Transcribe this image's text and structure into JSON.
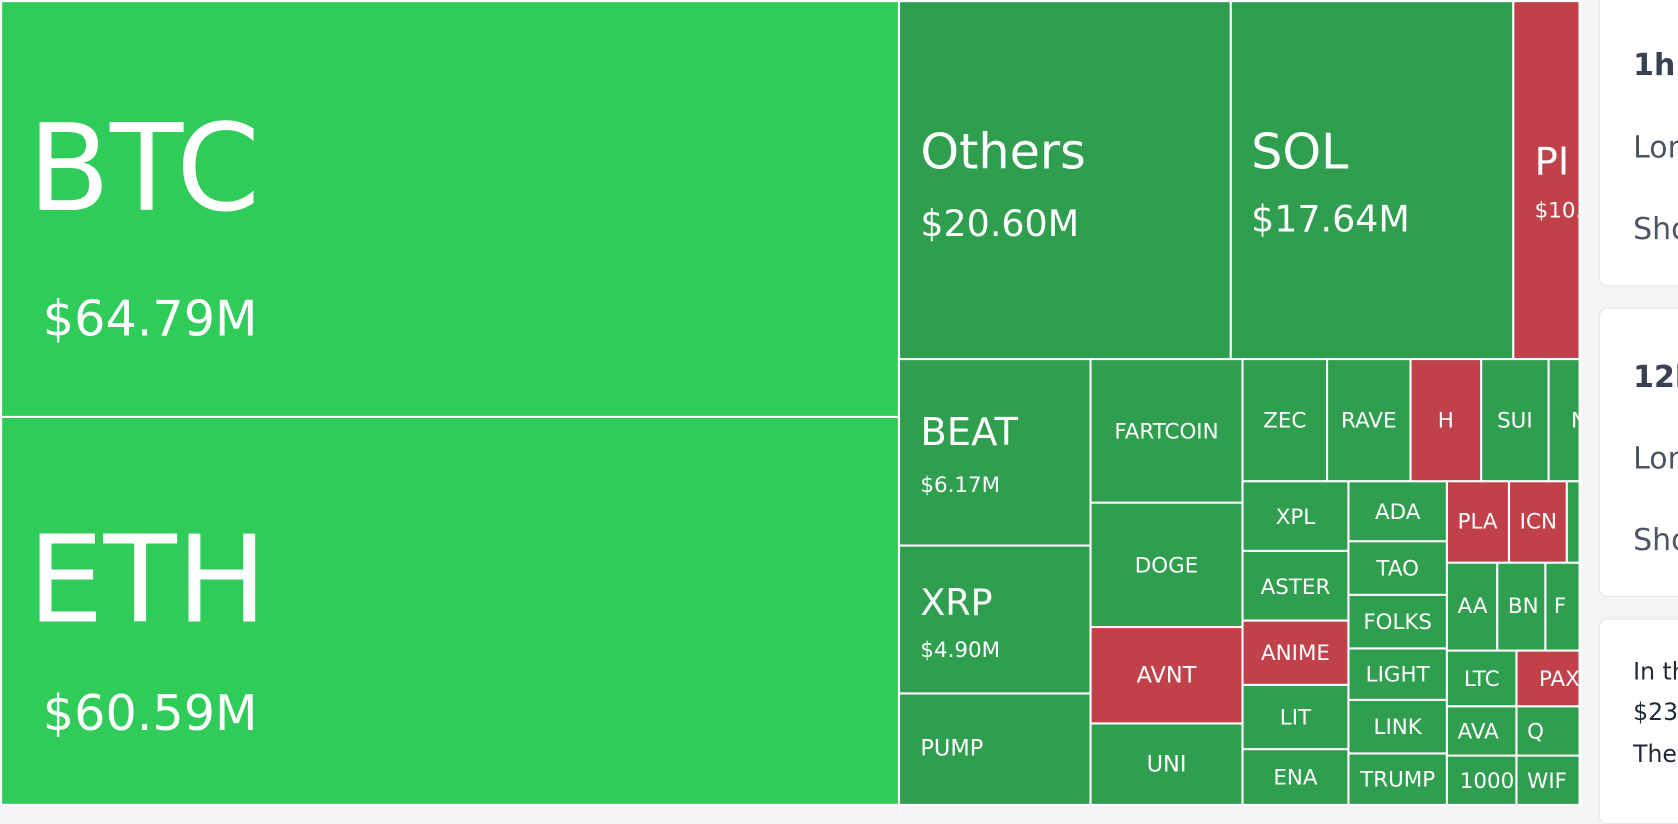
{
  "treemap": {
    "tiles": [
      {
        "label": "BTC",
        "value": "$64.79M"
      },
      {
        "label": "ETH",
        "value": "$60.59M"
      },
      {
        "label": "Others",
        "value": "$20.60M"
      },
      {
        "label": "SOL",
        "value": "$17.64M"
      },
      {
        "label": "PI",
        "value": "$10."
      },
      {
        "label": "BEAT",
        "value": "$6.17M"
      },
      {
        "label": "XRP",
        "value": "$4.90M"
      },
      {
        "label": "PUMP"
      },
      {
        "label": "FARTCOIN"
      },
      {
        "label": "DOGE"
      },
      {
        "label": "AVNT"
      },
      {
        "label": "UNI"
      },
      {
        "label": "ZEC"
      },
      {
        "label": "RAVE"
      },
      {
        "label": "H"
      },
      {
        "label": "SUI"
      },
      {
        "label": "N"
      },
      {
        "label": "XPL"
      },
      {
        "label": "ASTER"
      },
      {
        "label": "ANIME"
      },
      {
        "label": "LIT"
      },
      {
        "label": "ENA"
      },
      {
        "label": "ADA"
      },
      {
        "label": "TAO"
      },
      {
        "label": "FOLKS"
      },
      {
        "label": "LIGHT"
      },
      {
        "label": "LINK"
      },
      {
        "label": "TRUMP"
      },
      {
        "label": "PLA"
      },
      {
        "label": "ICN"
      },
      {
        "label": "AA"
      },
      {
        "label": "BN"
      },
      {
        "label": "F"
      },
      {
        "label": "LTC"
      },
      {
        "label": "PAX"
      },
      {
        "label": "AVA"
      },
      {
        "label": "Q"
      },
      {
        "label": "1000"
      },
      {
        "label": "WIF"
      }
    ]
  },
  "panel": {
    "card1": {
      "title": "1h",
      "long": "Lon",
      "short": "Sho"
    },
    "card2": {
      "title": "12h",
      "long": "Lon",
      "short": "Sho"
    },
    "card3": {
      "lines": [
        "In th",
        "$23",
        "The"
      ]
    }
  }
}
